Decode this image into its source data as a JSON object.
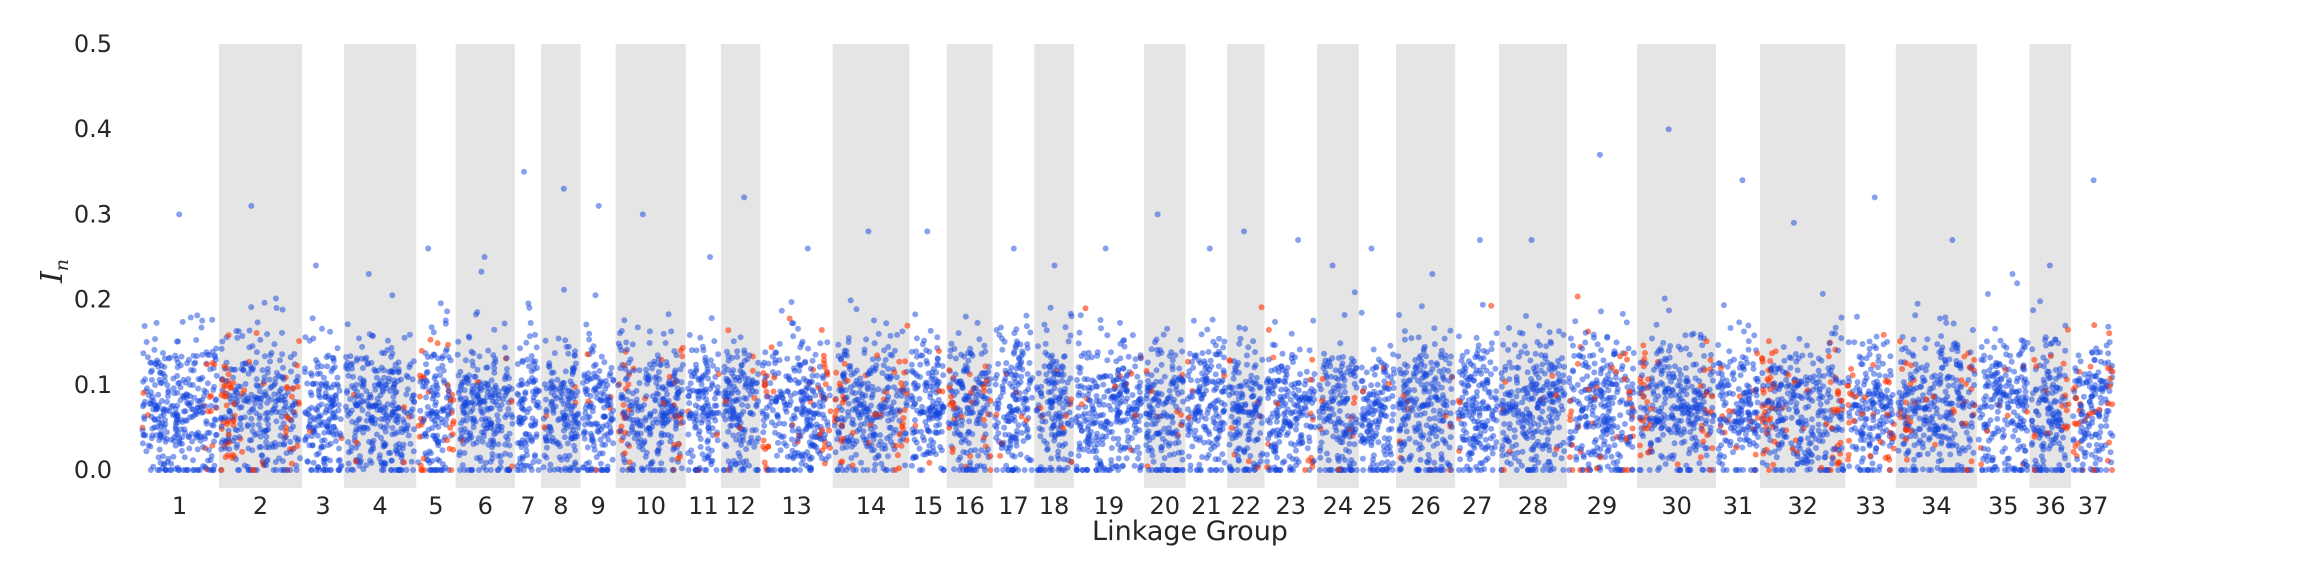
{
  "chart_data": {
    "type": "scatter",
    "xlabel": "Linkage Group",
    "ylabel_main": "I",
    "ylabel_sub": "n",
    "ylim": [
      0.0,
      0.5
    ],
    "yticks": [
      "0.0",
      "0.1",
      "0.2",
      "0.3",
      "0.4",
      "0.5"
    ],
    "grid": false,
    "legend": "none",
    "shaded_alternating_groups": true,
    "colors": {
      "primary_series": "#1144dd",
      "highlight_series": "#ff3300",
      "band": "#e5e5e5",
      "text": "#262626"
    },
    "series": [
      {
        "color": "#1144dd",
        "description_values": "most loci, In mostly 0.0–0.2"
      },
      {
        "color": "#ff3300",
        "description_values": "highlighted loci, clustered at group edges"
      }
    ],
    "groups": [
      {
        "label": "1",
        "width": 36,
        "max": 0.3,
        "red": 0.15
      },
      {
        "label": "2",
        "width": 38,
        "max": 0.31,
        "red": 0.6
      },
      {
        "label": "3",
        "width": 19,
        "max": 0.24,
        "red": 0.05
      },
      {
        "label": "4",
        "width": 33,
        "max": 0.23,
        "red": 0.08
      },
      {
        "label": "5",
        "width": 18,
        "max": 0.26,
        "red": 0.6
      },
      {
        "label": "6",
        "width": 27,
        "max": 0.25,
        "red": 0.05
      },
      {
        "label": "7",
        "width": 12,
        "max": 0.35,
        "red": 0.1
      },
      {
        "label": "8",
        "width": 18,
        "max": 0.33,
        "red": 0.1
      },
      {
        "label": "9",
        "width": 16,
        "max": 0.31,
        "red": 0.1
      },
      {
        "label": "10",
        "width": 32,
        "max": 0.3,
        "red": 0.35
      },
      {
        "label": "11",
        "width": 16,
        "max": 0.25,
        "red": 0.1
      },
      {
        "label": "12",
        "width": 18,
        "max": 0.32,
        "red": 0.15
      },
      {
        "label": "13",
        "width": 33,
        "max": 0.26,
        "red": 0.45
      },
      {
        "label": "14",
        "width": 35,
        "max": 0.28,
        "red": 0.35
      },
      {
        "label": "15",
        "width": 17,
        "max": 0.28,
        "red": 0.05
      },
      {
        "label": "16",
        "width": 21,
        "max": 0.18,
        "red": 0.4
      },
      {
        "label": "17",
        "width": 19,
        "max": 0.26,
        "red": 0.15
      },
      {
        "label": "18",
        "width": 18,
        "max": 0.24,
        "red": 0.15
      },
      {
        "label": "19",
        "width": 32,
        "max": 0.26,
        "red": 0.1
      },
      {
        "label": "20",
        "width": 19,
        "max": 0.3,
        "red": 0.1
      },
      {
        "label": "21",
        "width": 19,
        "max": 0.26,
        "red": 0.05
      },
      {
        "label": "22",
        "width": 17,
        "max": 0.28,
        "red": 0.15
      },
      {
        "label": "23",
        "width": 24,
        "max": 0.27,
        "red": 0.2
      },
      {
        "label": "24",
        "width": 19,
        "max": 0.24,
        "red": 0.1
      },
      {
        "label": "25",
        "width": 17,
        "max": 0.26,
        "red": 0.1
      },
      {
        "label": "26",
        "width": 27,
        "max": 0.23,
        "red": 0.1
      },
      {
        "label": "27",
        "width": 20,
        "max": 0.27,
        "red": 0.15
      },
      {
        "label": "28",
        "width": 31,
        "max": 0.27,
        "red": 0.1
      },
      {
        "label": "29",
        "width": 32,
        "max": 0.37,
        "red": 0.5
      },
      {
        "label": "30",
        "width": 36,
        "max": 0.4,
        "red": 0.4
      },
      {
        "label": "31",
        "width": 20,
        "max": 0.34,
        "red": 0.3
      },
      {
        "label": "32",
        "width": 39,
        "max": 0.29,
        "red": 0.6
      },
      {
        "label": "33",
        "width": 23,
        "max": 0.32,
        "red": 0.6
      },
      {
        "label": "34",
        "width": 37,
        "max": 0.27,
        "red": 0.4
      },
      {
        "label": "35",
        "width": 24,
        "max": 0.23,
        "red": 0.1
      },
      {
        "label": "36",
        "width": 19,
        "max": 0.24,
        "red": 0.3
      },
      {
        "label": "37",
        "width": 20,
        "max": 0.34,
        "red": 0.55
      }
    ]
  }
}
